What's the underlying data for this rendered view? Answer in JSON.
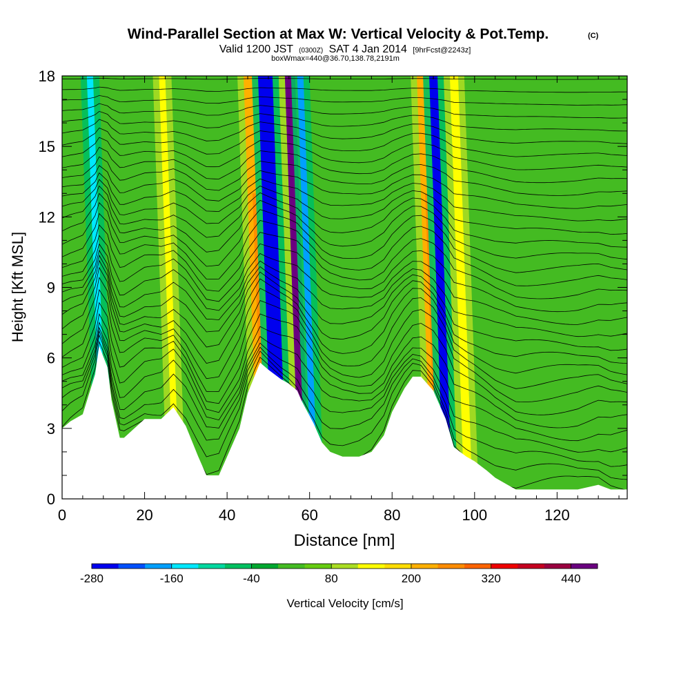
{
  "titles": {
    "main": "Wind-Parallel Section at Max W: Vertical Velocity & Pot.Temp.",
    "main_suffix": "(C)",
    "valid_prefix": "Valid 1200 JST",
    "valid_utc": "(0300Z)",
    "valid_date": "SAT 4 Jan 2014",
    "forecast": "[9hrFcst@2243z]",
    "box": "boxWmax=440@36.70,138.78,2191m"
  },
  "colorbar": {
    "label": "Vertical Velocity [cm/s]",
    "tick_labels": [
      "-280",
      "-160",
      "-40",
      "80",
      "200",
      "320",
      "440"
    ],
    "tick_values": [
      -280,
      -160,
      -40,
      80,
      200,
      320,
      440
    ],
    "levels": [
      -280,
      -240,
      -200,
      -160,
      -120,
      -80,
      -40,
      0,
      40,
      80,
      120,
      160,
      200,
      240,
      280,
      320,
      360,
      400,
      440,
      480
    ],
    "colors": [
      "#0000ee",
      "#0050ff",
      "#00a0ff",
      "#00e8ff",
      "#00d8a0",
      "#00c060",
      "#00a830",
      "#44bb22",
      "#66cc11",
      "#aadd22",
      "#ffff00",
      "#ffdd00",
      "#ffb000",
      "#ff8c00",
      "#ff6400",
      "#ee0000",
      "#c40020",
      "#9a0040",
      "#6a0080"
    ]
  },
  "chart_data": {
    "type": "heatmap",
    "title": "Wind-Parallel Section at Max W: Vertical Velocity & Pot.Temp.",
    "xlabel": "Distance [nm]",
    "ylabel": "Height [Kft MSL]",
    "xlim": [
      0,
      137
    ],
    "ylim": [
      0,
      18
    ],
    "x_ticks": [
      0,
      20,
      40,
      60,
      80,
      100,
      120
    ],
    "y_ticks": [
      0,
      3,
      6,
      9,
      12,
      15,
      18
    ],
    "fill_variable": "Vertical Velocity [cm/s]",
    "contour_variable": "Potential temperature",
    "max_w": 440,
    "terrain": {
      "x": [
        0,
        2,
        5,
        8,
        9,
        11,
        12,
        14,
        15,
        20,
        24,
        27,
        30,
        33,
        35,
        38,
        40,
        43,
        45,
        48,
        50,
        53,
        55,
        57,
        58,
        61,
        63,
        65,
        68,
        70,
        72,
        75,
        78,
        80,
        83,
        85,
        87,
        90,
        93,
        95,
        98,
        100,
        103,
        105,
        108,
        110,
        113,
        115,
        118,
        120,
        125,
        130,
        133,
        137
      ],
      "height_kft": [
        3.0,
        3.3,
        3.6,
        5.3,
        6.5,
        5.6,
        4.2,
        2.6,
        2.6,
        3.4,
        3.4,
        3.9,
        3.1,
        1.8,
        1.0,
        1.0,
        1.8,
        3.0,
        4.5,
        5.8,
        5.5,
        5.1,
        4.9,
        4.6,
        4.2,
        3.2,
        2.4,
        2.0,
        1.8,
        1.8,
        1.8,
        2.0,
        2.7,
        3.7,
        4.7,
        5.2,
        5.2,
        4.6,
        3.4,
        2.2,
        1.8,
        1.6,
        1.2,
        0.9,
        0.6,
        0.4,
        0.4,
        0.4,
        0.4,
        0.4,
        0.4,
        0.6,
        0.4,
        0.4
      ]
    },
    "bands_cms": [
      {
        "x0": 9.5,
        "x1": 11.0,
        "w": -160
      },
      {
        "x0": 27.0,
        "x1": 28.5,
        "w": 140
      },
      {
        "x0": 47.5,
        "x1": 50.5,
        "w": 210
      },
      {
        "x0": 51.0,
        "x1": 54.5,
        "w": -250
      },
      {
        "x0": 57.5,
        "x1": 60.0,
        "w": 440
      },
      {
        "x0": 60.5,
        "x1": 62.0,
        "w": -200
      },
      {
        "x0": 89.5,
        "x1": 92.0,
        "w": 230
      },
      {
        "x0": 92.5,
        "x1": 94.5,
        "w": -270
      },
      {
        "x0": 97.5,
        "x1": 99.5,
        "w": 120
      }
    ]
  }
}
